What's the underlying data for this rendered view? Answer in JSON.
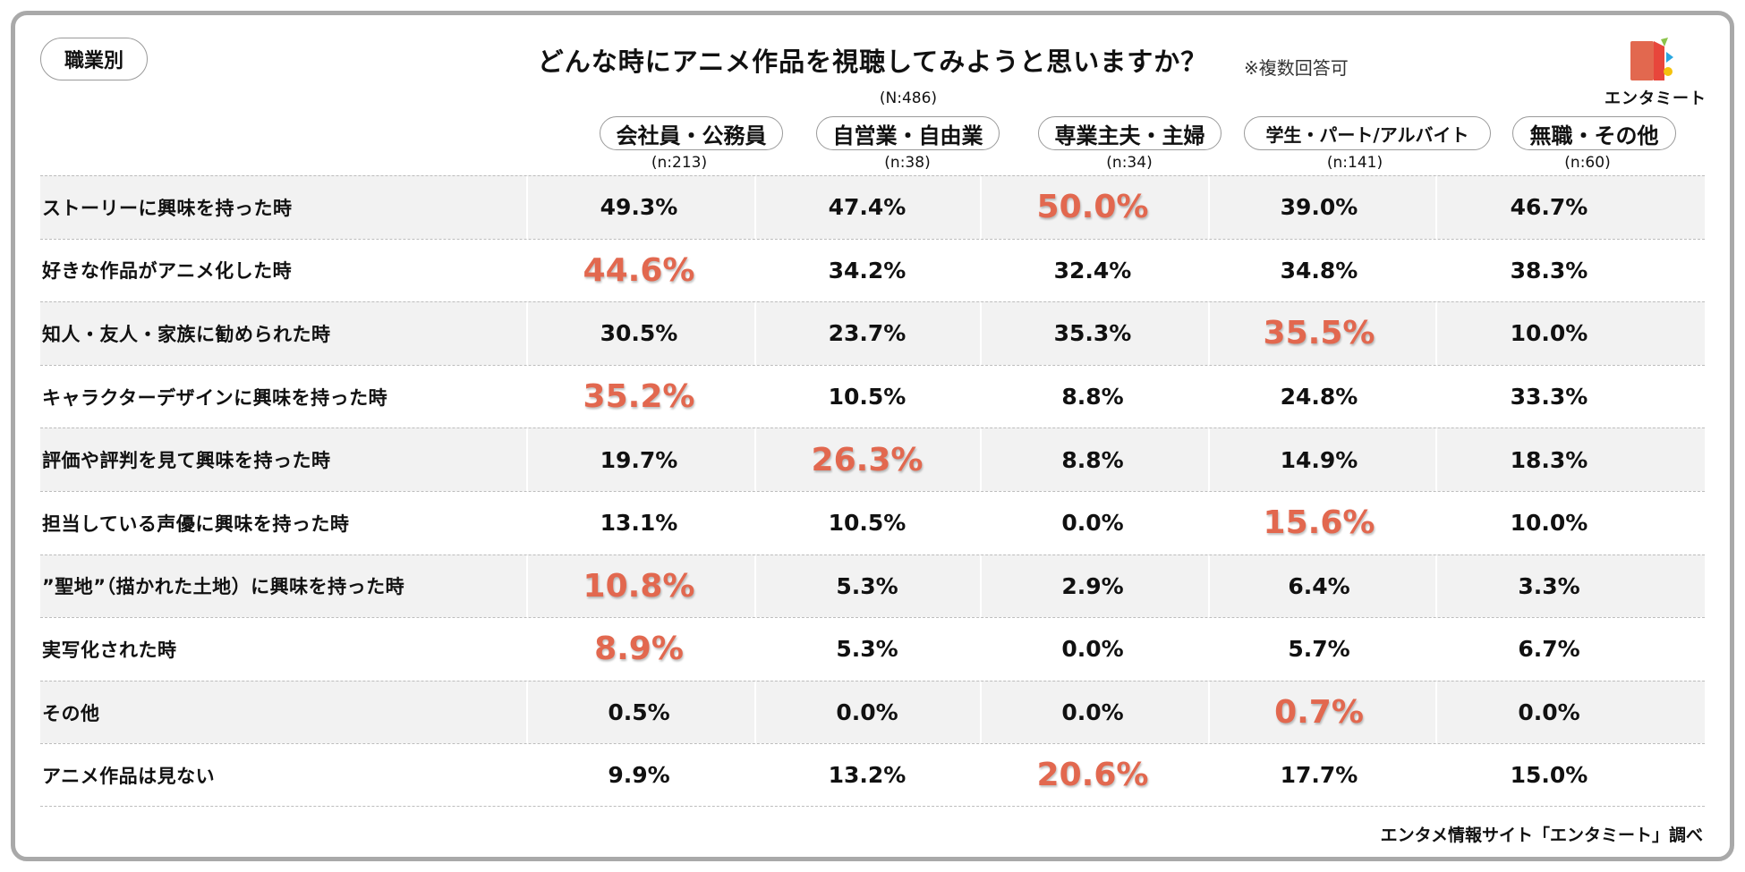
{
  "category_label": "職業別",
  "title": "どんな時にアニメ作品を視聴してみようと思いますか？",
  "note": "※複数回答可",
  "total_n": "(N:486)",
  "brand": {
    "name": "エンタミート",
    "accent_color": "#e2684f"
  },
  "source": "エンタメ情報サイト「エンタミート」調べ",
  "chart_data": {
    "type": "table",
    "columns": [
      {
        "label": "会社員・公務員",
        "n": "(n:213)"
      },
      {
        "label": "自営業・自由業",
        "n": "(n:38)"
      },
      {
        "label": "専業主夫・主婦",
        "n": "(n:34)"
      },
      {
        "label": "学生・パート/アルバイト",
        "n": "(n:141)"
      },
      {
        "label": "無職・その他",
        "n": "(n:60)"
      }
    ],
    "rows": [
      {
        "label": "ストーリーに興味を持った時",
        "values": [
          "49.3%",
          "47.4%",
          "50.0%",
          "39.0%",
          "46.7%"
        ],
        "highlight": 2
      },
      {
        "label": "好きな作品がアニメ化した時",
        "values": [
          "44.6%",
          "34.2%",
          "32.4%",
          "34.8%",
          "38.3%"
        ],
        "highlight": 0
      },
      {
        "label": "知人・友人・家族に勧められた時",
        "values": [
          "30.5%",
          "23.7%",
          "35.3%",
          "35.5%",
          "10.0%"
        ],
        "highlight": 3
      },
      {
        "label": "キャラクターデザインに興味を持った時",
        "values": [
          "35.2%",
          "10.5%",
          "8.8%",
          "24.8%",
          "33.3%"
        ],
        "highlight": 0
      },
      {
        "label": "評価や評判を見て興味を持った時",
        "values": [
          "19.7%",
          "26.3%",
          "8.8%",
          "14.9%",
          "18.3%"
        ],
        "highlight": 1
      },
      {
        "label": "担当している声優に興味を持った時",
        "values": [
          "13.1%",
          "10.5%",
          "0.0%",
          "15.6%",
          "10.0%"
        ],
        "highlight": 3
      },
      {
        "label": "”聖地”（描かれた土地）に興味を持った時",
        "values": [
          "10.8%",
          "5.3%",
          "2.9%",
          "6.4%",
          "3.3%"
        ],
        "highlight": 0
      },
      {
        "label": "実写化された時",
        "values": [
          "8.9%",
          "5.3%",
          "0.0%",
          "5.7%",
          "6.7%"
        ],
        "highlight": 0
      },
      {
        "label": "その他",
        "values": [
          "0.5%",
          "0.0%",
          "0.0%",
          "0.7%",
          "0.0%"
        ],
        "highlight": 3
      },
      {
        "label": "アニメ作品は見ない",
        "values": [
          "9.9%",
          "13.2%",
          "20.6%",
          "17.7%",
          "15.0%"
        ],
        "highlight": 2
      }
    ]
  }
}
